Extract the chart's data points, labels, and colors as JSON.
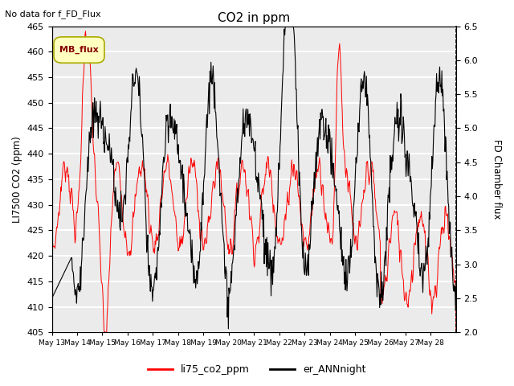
{
  "title": "CO2 in ppm",
  "top_left_text": "No data for f_FD_Flux",
  "ylabel_left": "LI7500 CO2 (ppm)",
  "ylabel_right": "FD Chamber flux",
  "ylim_left": [
    405,
    465
  ],
  "ylim_right": [
    2.0,
    6.5
  ],
  "yticks_left": [
    405,
    410,
    415,
    420,
    425,
    430,
    435,
    440,
    445,
    450,
    455,
    460,
    465
  ],
  "yticks_right": [
    2.0,
    2.5,
    3.0,
    3.5,
    4.0,
    4.5,
    5.0,
    5.5,
    6.0,
    6.5
  ],
  "xtick_labels": [
    "May 13",
    "May 14",
    "May 15",
    "May 16",
    "May 17",
    "May 18",
    "May 19",
    "May 20",
    "May 21",
    "May 22",
    "May 23",
    "May 24",
    "May 25",
    "May 26",
    "May 27",
    "May 28"
  ],
  "legend_label_red": "li75_co2_ppm",
  "legend_label_black": "er_ANNnight",
  "legend_box_label": "MB_flux",
  "legend_box_facecolor": "#FFFFC0",
  "legend_box_edgecolor": "#AAAA00",
  "background_color": "#EBEBEB",
  "grid_color": "#FFFFFF",
  "line_color_red": "#FF0000",
  "line_color_black": "#000000",
  "n_days": 16,
  "n_per_day": 48
}
